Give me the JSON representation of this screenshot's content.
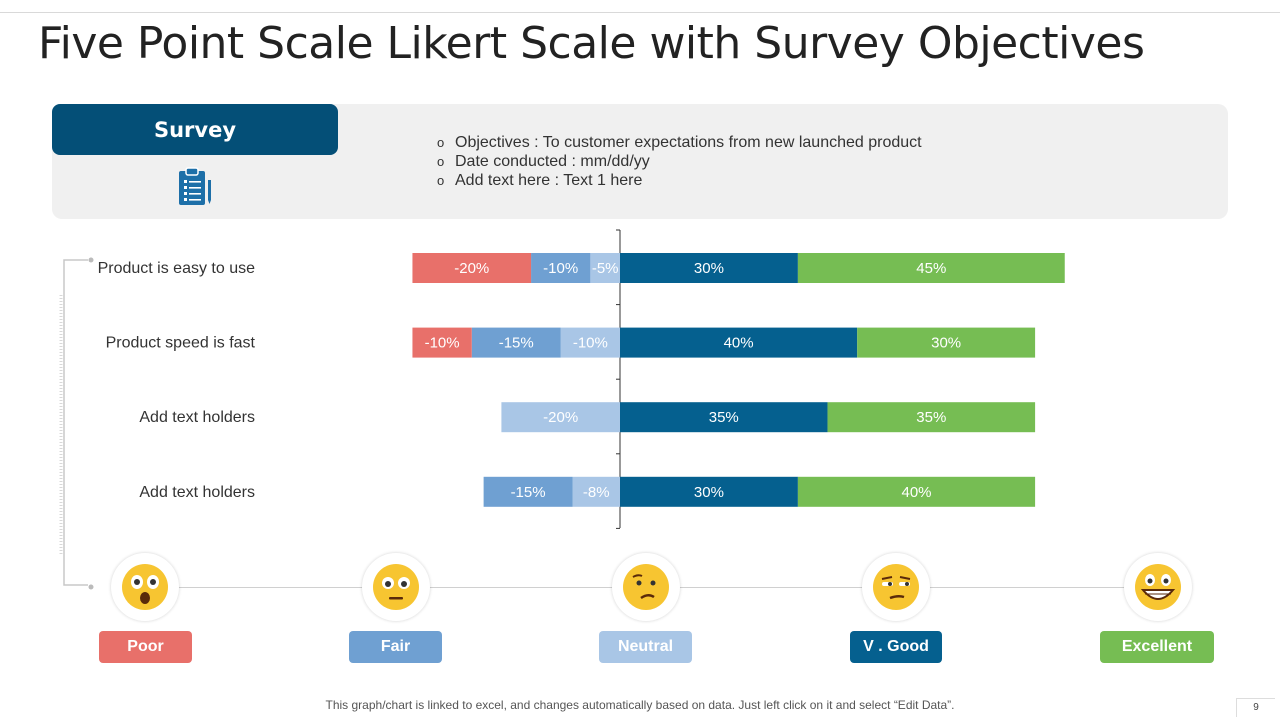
{
  "title": "Five Point Scale Likert Scale with Survey Objectives",
  "survey": {
    "label": "Survey",
    "icon": "clipboard-icon",
    "bullets": [
      "Objectives : To customer expectations from new launched product",
      "Date conducted : mm/dd/yy",
      "Add text here : Text 1 here"
    ],
    "bullet_glyph": "o"
  },
  "chart_data": {
    "type": "bar",
    "orientation": "horizontal-diverging",
    "categories": [
      "Product is easy to use",
      "Product speed is fast",
      "Add text holders",
      "Add text holders"
    ],
    "series": [
      {
        "name": "Poor",
        "color": "#e8706a",
        "values": [
          -20,
          -10,
          0,
          0
        ],
        "labels": [
          "-20%",
          "-10%",
          "",
          ""
        ]
      },
      {
        "name": "Fair",
        "color": "#6fa0d2",
        "values": [
          -10,
          -15,
          0,
          -15
        ],
        "labels": [
          "-10%",
          "-15%",
          "",
          "-15%"
        ]
      },
      {
        "name": "Neutral",
        "color": "#a9c6e6",
        "values": [
          -5,
          -10,
          -20,
          -8
        ],
        "labels": [
          "-5%",
          "-10%",
          "-20%",
          "-8%"
        ]
      },
      {
        "name": "V . Good",
        "color": "#05608f",
        "values": [
          30,
          40,
          35,
          30
        ],
        "labels": [
          "30%",
          "40%",
          "35%",
          "30%"
        ]
      },
      {
        "name": "Excellent",
        "color": "#76bd53",
        "values": [
          45,
          30,
          35,
          40
        ],
        "labels": [
          "45%",
          "30%",
          "35%",
          "40%"
        ]
      }
    ],
    "xlim": [
      -35,
      75
    ],
    "legend": "bottom"
  },
  "scale": [
    {
      "label": "Poor",
      "color": "#e8706a",
      "icon": "astonished-face-icon"
    },
    {
      "label": "Fair",
      "color": "#6fa0d2",
      "icon": "neutral-face-icon"
    },
    {
      "label": "Neutral",
      "color": "#a9c6e6",
      "icon": "confused-face-icon"
    },
    {
      "label": "V . Good",
      "color": "#05608f",
      "icon": "unamused-face-icon"
    },
    {
      "label": "Excellent",
      "color": "#76bd53",
      "icon": "grinning-face-icon"
    }
  ],
  "footer": "This graph/chart is linked to excel, and changes automatically based on data. Just left click on it and select “Edit Data”.",
  "page_number": "9"
}
